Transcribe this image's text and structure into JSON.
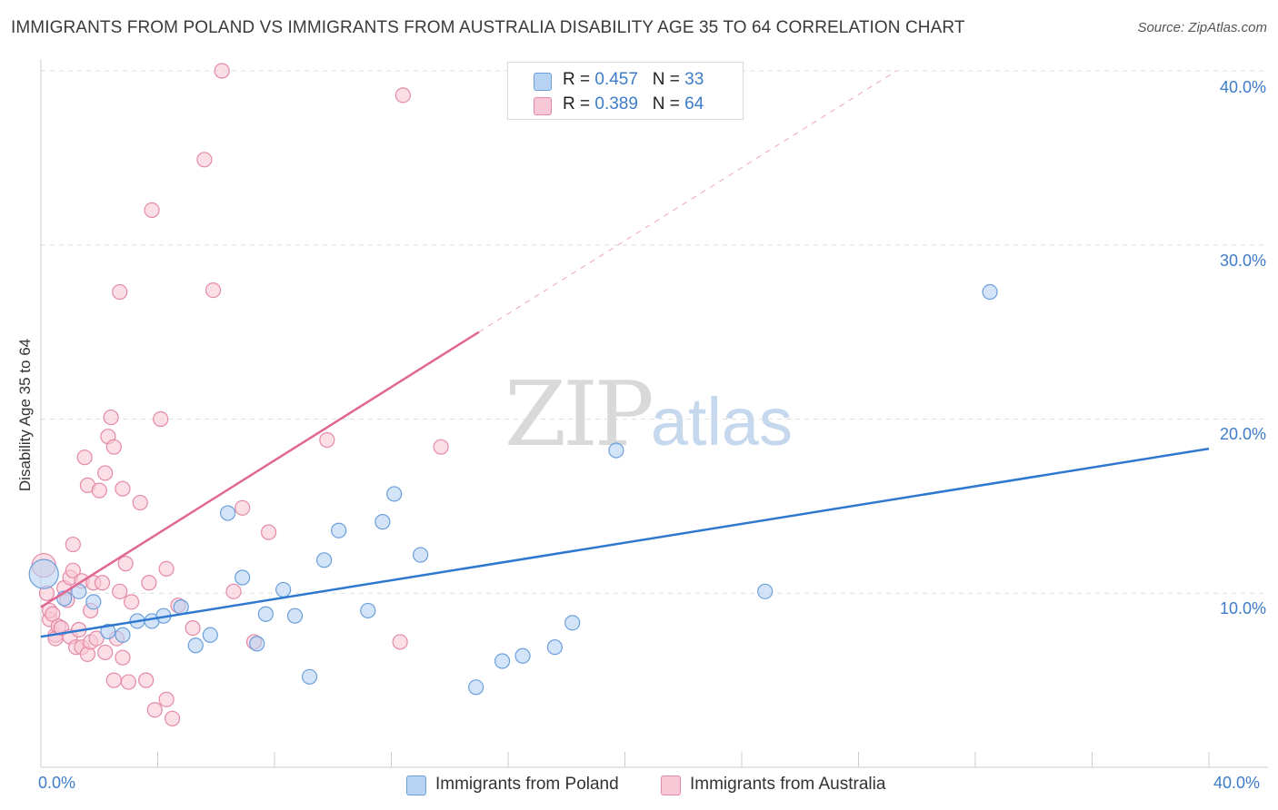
{
  "title": "IMMIGRANTS FROM POLAND VS IMMIGRANTS FROM AUSTRALIA DISABILITY AGE 35 TO 64 CORRELATION CHART",
  "source": "Source: ZipAtlas.com",
  "watermark": {
    "zip": "ZIP",
    "atlas": "atlas"
  },
  "colors": {
    "poland_fill": "#b8d2f4",
    "poland_stroke": "#6a9fdb",
    "poland_line": "#2f78d0",
    "australia_fill": "#f9c8d6",
    "australia_stroke": "#e48aa6",
    "australia_line": "#e06890",
    "tick_text": "#3d7cc9",
    "grid": "#dddddd"
  },
  "legend": {
    "r_label": "R =",
    "n_label": "N =",
    "poland": {
      "r": "0.457",
      "n": "33"
    },
    "australia": {
      "r": "0.389",
      "n": "64"
    }
  },
  "bottom_legend": {
    "poland": "Immigrants from Poland",
    "australia": "Immigrants from Australia"
  },
  "chart_data": {
    "type": "scatter",
    "xlabel": "",
    "ylabel": "Disability Age 35 to 64",
    "xlim": [
      0,
      40
    ],
    "ylim": [
      0,
      40
    ],
    "x_tick_labels": {
      "left": "0.0%",
      "right": "40.0%"
    },
    "y_tick_labels": [
      "10.0%",
      "20.0%",
      "30.0%",
      "40.0%"
    ],
    "y_ticks": [
      10,
      20,
      30,
      40
    ],
    "x_minor_ticks": [
      4,
      8,
      12,
      16,
      20,
      24,
      28,
      32,
      36,
      40
    ],
    "grid": true,
    "series": [
      {
        "name": "Immigrants from Poland",
        "points": [
          [
            0.1,
            11.1
          ],
          [
            0.8,
            9.7
          ],
          [
            1.3,
            10.1
          ],
          [
            1.8,
            9.5
          ],
          [
            2.3,
            7.8
          ],
          [
            2.8,
            7.6
          ],
          [
            3.3,
            8.4
          ],
          [
            3.8,
            8.4
          ],
          [
            4.2,
            8.7
          ],
          [
            4.8,
            9.2
          ],
          [
            5.3,
            7.0
          ],
          [
            5.8,
            7.6
          ],
          [
            6.4,
            14.6
          ],
          [
            6.9,
            10.9
          ],
          [
            7.4,
            7.1
          ],
          [
            7.7,
            8.8
          ],
          [
            8.3,
            10.2
          ],
          [
            8.7,
            8.7
          ],
          [
            9.2,
            5.2
          ],
          [
            9.7,
            11.9
          ],
          [
            10.2,
            13.6
          ],
          [
            11.2,
            9.0
          ],
          [
            11.7,
            14.1
          ],
          [
            12.1,
            15.7
          ],
          [
            13.0,
            12.2
          ],
          [
            14.9,
            4.6
          ],
          [
            15.8,
            6.1
          ],
          [
            16.5,
            6.4
          ],
          [
            17.6,
            6.9
          ],
          [
            18.2,
            8.3
          ],
          [
            19.7,
            18.2
          ],
          [
            24.8,
            10.1
          ],
          [
            32.5,
            27.3
          ]
        ],
        "sizes_note": "first point larger",
        "trend": {
          "x": [
            0,
            40
          ],
          "y": [
            7.5,
            18.3
          ]
        }
      },
      {
        "name": "Immigrants from Australia",
        "points": [
          [
            0.1,
            11.6
          ],
          [
            0.2,
            10.0
          ],
          [
            0.3,
            8.5
          ],
          [
            0.3,
            9.0
          ],
          [
            0.4,
            8.8
          ],
          [
            0.5,
            7.6
          ],
          [
            0.5,
            7.4
          ],
          [
            0.6,
            8.1
          ],
          [
            0.7,
            8.0
          ],
          [
            0.8,
            10.3
          ],
          [
            0.9,
            9.6
          ],
          [
            1.0,
            10.9
          ],
          [
            1.0,
            7.5
          ],
          [
            1.1,
            11.3
          ],
          [
            1.1,
            12.8
          ],
          [
            1.2,
            6.9
          ],
          [
            1.3,
            7.9
          ],
          [
            1.4,
            6.9
          ],
          [
            1.4,
            10.7
          ],
          [
            1.5,
            17.8
          ],
          [
            1.6,
            6.5
          ],
          [
            1.6,
            16.2
          ],
          [
            1.7,
            7.2
          ],
          [
            1.7,
            9.0
          ],
          [
            1.8,
            10.6
          ],
          [
            1.9,
            7.4
          ],
          [
            2.0,
            15.9
          ],
          [
            2.1,
            10.6
          ],
          [
            2.2,
            6.6
          ],
          [
            2.2,
            16.9
          ],
          [
            2.3,
            19.0
          ],
          [
            2.4,
            20.1
          ],
          [
            2.5,
            5.0
          ],
          [
            2.5,
            18.4
          ],
          [
            2.6,
            7.4
          ],
          [
            2.7,
            10.1
          ],
          [
            2.7,
            27.3
          ],
          [
            2.8,
            16.0
          ],
          [
            2.8,
            6.3
          ],
          [
            2.9,
            11.7
          ],
          [
            3.0,
            4.9
          ],
          [
            3.1,
            9.5
          ],
          [
            3.4,
            15.2
          ],
          [
            3.6,
            5.0
          ],
          [
            3.7,
            10.6
          ],
          [
            3.8,
            32.0
          ],
          [
            3.9,
            3.3
          ],
          [
            4.1,
            20.0
          ],
          [
            4.3,
            3.9
          ],
          [
            4.3,
            11.4
          ],
          [
            4.5,
            2.8
          ],
          [
            4.7,
            9.3
          ],
          [
            5.2,
            8.0
          ],
          [
            5.6,
            34.9
          ],
          [
            5.9,
            27.4
          ],
          [
            6.2,
            40.0
          ],
          [
            6.6,
            10.1
          ],
          [
            6.9,
            14.9
          ],
          [
            7.3,
            7.2
          ],
          [
            7.8,
            13.5
          ],
          [
            9.8,
            18.8
          ],
          [
            12.3,
            7.2
          ],
          [
            12.4,
            38.6
          ],
          [
            13.7,
            18.4
          ]
        ],
        "trend": {
          "x": [
            0,
            15
          ],
          "y": [
            9.2,
            25.0
          ]
        },
        "trend_extension": {
          "x": [
            15,
            29.3
          ],
          "y": [
            25.0,
            40.0
          ],
          "style": "dashed"
        }
      }
    ]
  }
}
